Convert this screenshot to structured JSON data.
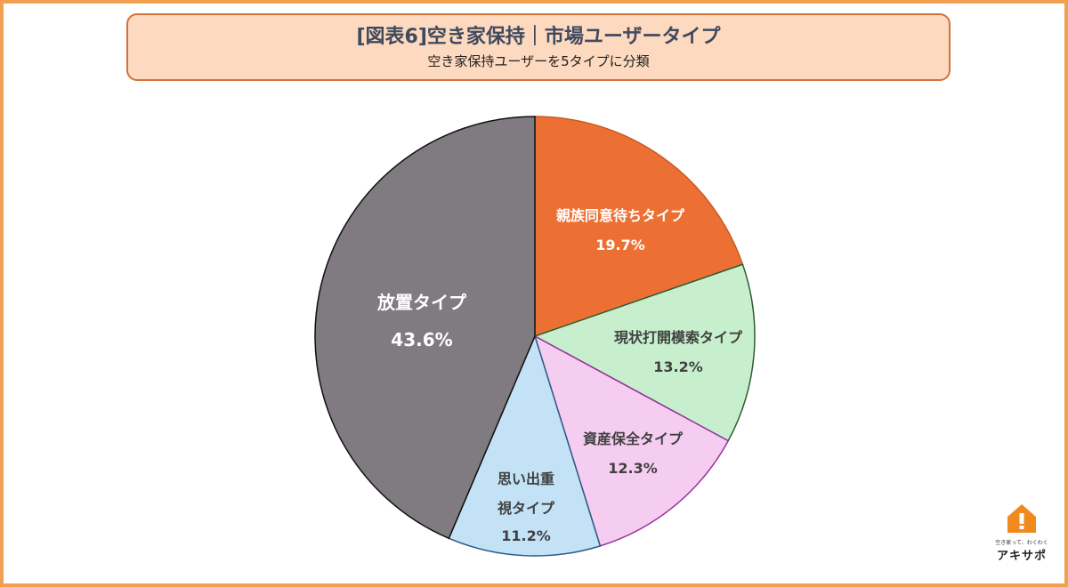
{
  "header": {
    "title": "[図表6]空き家保持｜市場ユーザータイプ",
    "subtitle": "空き家保持ユーザーを5タイプに分類"
  },
  "logo": {
    "tagline": "空き家って、わくわく",
    "name": "アキサポ",
    "icon": "house-exclamation-icon"
  },
  "chart_data": {
    "type": "pie",
    "slices": [
      {
        "label": "親族同意待ちタイプ",
        "value": 19.7,
        "display": "19.7%",
        "color": "#ec7034",
        "stroke": "#c85a1e"
      },
      {
        "label": "現状打開模索タイプ",
        "value": 13.2,
        "display": "13.2%",
        "color": "#c7efcd",
        "stroke": "#2f5d32"
      },
      {
        "label": "資産保全タイプ",
        "value": 12.3,
        "display": "12.3%",
        "color": "#f4cdf0",
        "stroke": "#9b2fa0"
      },
      {
        "label": "思い出重視タイプ",
        "value": 11.2,
        "display": "11.2%",
        "color": "#c4e2f6",
        "stroke": "#2e5a85"
      },
      {
        "label": "放置タイプ",
        "value": 43.6,
        "display": "43.6%",
        "color": "#7f7b80",
        "stroke": "#111111"
      }
    ]
  }
}
